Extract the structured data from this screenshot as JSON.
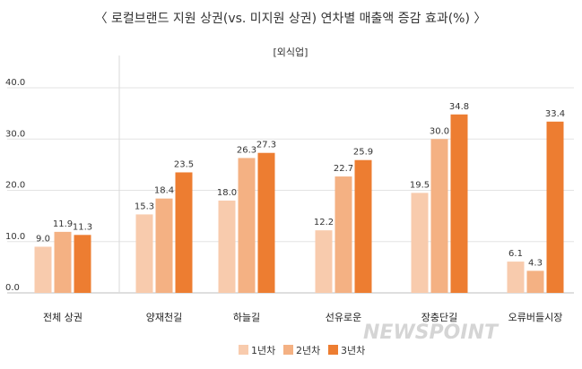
{
  "chart_data": {
    "type": "bar",
    "title": "〈 로컬브랜드 지원 상권(vs. 미지원 상권) 연차별 매출액 증감 효과(%) 〉",
    "subtitle": "[외식업]",
    "categories": [
      "전체 상권",
      "양재천길",
      "하늘길",
      "선유로운",
      "장충단길",
      "오류버들시장"
    ],
    "series": [
      {
        "name": "1년차",
        "color": "#f8cbad",
        "values": [
          9.0,
          15.3,
          18.0,
          12.2,
          19.5,
          6.1
        ]
      },
      {
        "name": "2년차",
        "color": "#f4b183",
        "values": [
          11.9,
          18.4,
          26.3,
          22.7,
          30.0,
          4.3
        ]
      },
      {
        "name": "3년차",
        "color": "#ed7d31",
        "values": [
          11.3,
          23.5,
          27.3,
          25.9,
          34.8,
          33.4
        ]
      }
    ],
    "yticks": [
      "0.0",
      "10.0",
      "20.0",
      "30.0",
      "40.0"
    ],
    "ylim": [
      0,
      40
    ],
    "grid": true,
    "legend": "bottom",
    "watermark": "NEWSPOINT"
  }
}
